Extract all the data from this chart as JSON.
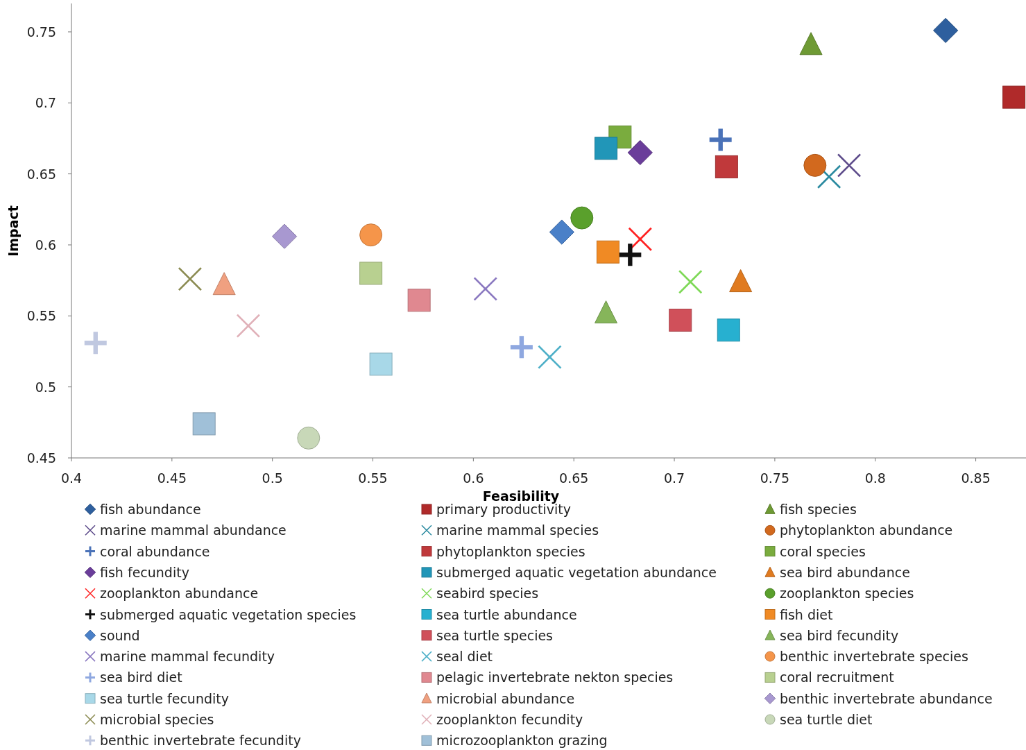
{
  "chart_data": {
    "type": "scatter",
    "xlabel": "Feasibility",
    "ylabel": "Impact",
    "xlim": [
      0.4,
      0.875
    ],
    "ylim": [
      0.45,
      0.77
    ],
    "xticks": [
      0.4,
      0.45,
      0.5,
      0.55,
      0.6,
      0.65,
      0.7,
      0.75,
      0.8,
      0.85
    ],
    "yticks": [
      0.45,
      0.5,
      0.55,
      0.6,
      0.65,
      0.7,
      0.75
    ],
    "grid": false,
    "legend": "bottom",
    "series": [
      {
        "name": "fish abundance",
        "color": "#2e5f9e",
        "marker": "diamond",
        "x": [
          0.835
        ],
        "values": [
          0.751
        ]
      },
      {
        "name": "primary productivity",
        "color": "#b02a2a",
        "marker": "square",
        "x": [
          0.869
        ],
        "values": [
          0.704
        ]
      },
      {
        "name": "fish species",
        "color": "#6e9a34",
        "marker": "triangle",
        "x": [
          0.768
        ],
        "values": [
          0.741
        ]
      },
      {
        "name": "marine mammal abundance",
        "color": "#5c4a8a",
        "marker": "cross",
        "x": [
          0.787
        ],
        "values": [
          0.656
        ]
      },
      {
        "name": "marine mammal species",
        "color": "#2a8aa0",
        "marker": "cross",
        "x": [
          0.777
        ],
        "values": [
          0.648
        ]
      },
      {
        "name": "phytoplankton abundance",
        "color": "#d2691e",
        "marker": "circle",
        "x": [
          0.77
        ],
        "values": [
          0.656
        ]
      },
      {
        "name": "coral abundance",
        "color": "#4a72b8",
        "x": [
          0.723
        ],
        "values": [
          0.674
        ]
      },
      {
        "name": "phytoplankton species",
        "color": "#c0393b",
        "marker": "square",
        "x": [
          0.726
        ],
        "values": [
          0.655
        ]
      },
      {
        "name": "coral species",
        "color": "#7aac3e",
        "marker": "square",
        "x": [
          0.673
        ],
        "values": [
          0.676
        ]
      },
      {
        "name": "fish fecundity",
        "color": "#6a3d9a",
        "marker": "diamond",
        "x": [
          0.683
        ],
        "values": [
          0.665
        ]
      },
      {
        "name": "submerged aquatic vegetation abundance",
        "color": "#2196b8",
        "marker": "square",
        "x": [
          0.666
        ],
        "values": [
          0.668
        ]
      },
      {
        "name": "sea bird abundance",
        "color": "#e07b20",
        "marker": "triangle",
        "x": [
          0.733
        ],
        "values": [
          0.574
        ]
      },
      {
        "name": "zooplankton abundance",
        "color": "#ff2020",
        "marker": "cross",
        "x": [
          0.683
        ],
        "values": [
          0.604
        ]
      },
      {
        "name": "seabird species",
        "color": "#7ed957",
        "marker": "cross",
        "x": [
          0.708
        ],
        "values": [
          0.574
        ]
      },
      {
        "name": "zooplankton species",
        "color": "#5aa02c",
        "marker": "circle",
        "x": [
          0.654
        ],
        "values": [
          0.619
        ]
      },
      {
        "name": "submerged aquatic vegetation species",
        "color": "#111111",
        "x": [
          0.678
        ],
        "values": [
          0.593
        ]
      },
      {
        "name": "sea turtle abundance",
        "color": "#27b0d0",
        "marker": "square",
        "x": [
          0.727
        ],
        "values": [
          0.54
        ]
      },
      {
        "name": "fish diet",
        "color": "#f08a24",
        "marker": "square",
        "x": [
          0.667
        ],
        "values": [
          0.595
        ]
      },
      {
        "name": "sound",
        "color": "#4a80c8",
        "marker": "diamond",
        "x": [
          0.644
        ],
        "values": [
          0.609
        ]
      },
      {
        "name": "sea turtle species",
        "color": "#d0505a",
        "marker": "square",
        "x": [
          0.703
        ],
        "values": [
          0.547
        ]
      },
      {
        "name": "sea bird fecundity",
        "color": "#86b55a",
        "marker": "triangle",
        "x": [
          0.666
        ],
        "values": [
          0.552
        ]
      },
      {
        "name": "marine mammal fecundity",
        "color": "#8a78c0",
        "marker": "cross",
        "x": [
          0.606
        ],
        "values": [
          0.569
        ]
      },
      {
        "name": "seal diet",
        "color": "#4eb0c8",
        "marker": "cross",
        "x": [
          0.638
        ],
        "values": [
          0.521
        ]
      },
      {
        "name": "benthic invertebrate species",
        "color": "#f5954a",
        "marker": "circle",
        "x": [
          0.549
        ],
        "values": [
          0.607
        ]
      },
      {
        "name": "sea bird diet",
        "color": "#8fa8e0",
        "x": [
          0.624
        ],
        "values": [
          0.528
        ]
      },
      {
        "name": "pelagic invertebrate nekton species",
        "color": "#e08890",
        "marker": "square",
        "x": [
          0.573
        ],
        "values": [
          0.561
        ]
      },
      {
        "name": "coral recruitment",
        "color": "#b8d090",
        "marker": "square",
        "x": [
          0.549
        ],
        "values": [
          0.58
        ]
      },
      {
        "name": "sea turtle fecundity",
        "color": "#a8d8e8",
        "marker": "square",
        "x": [
          0.554
        ],
        "values": [
          0.516
        ]
      },
      {
        "name": "microbial abundance",
        "color": "#f0a080",
        "marker": "triangle",
        "x": [
          0.476
        ],
        "values": [
          0.572
        ]
      },
      {
        "name": "benthic invertebrate abundance",
        "color": "#a898d0",
        "marker": "diamond",
        "x": [
          0.506
        ],
        "values": [
          0.606
        ]
      },
      {
        "name": "microbial species",
        "color": "#8a8a50",
        "marker": "cross",
        "x": [
          0.459
        ],
        "values": [
          0.576
        ]
      },
      {
        "name": "zooplankton fecundity",
        "color": "#e0b0b8",
        "marker": "cross",
        "x": [
          0.488
        ],
        "values": [
          0.543
        ]
      },
      {
        "name": "sea turtle diet",
        "color": "#c8d8b8",
        "marker": "circle",
        "x": [
          0.518
        ],
        "values": [
          0.464
        ]
      },
      {
        "name": "benthic invertebrate fecundity",
        "color": "#c0c8e0",
        "x": [
          0.412
        ],
        "values": [
          0.531
        ]
      },
      {
        "name": "microzooplankton grazing",
        "color": "#a0c0d8",
        "marker": "square",
        "x": [
          0.466
        ],
        "values": [
          0.474
        ]
      }
    ]
  }
}
